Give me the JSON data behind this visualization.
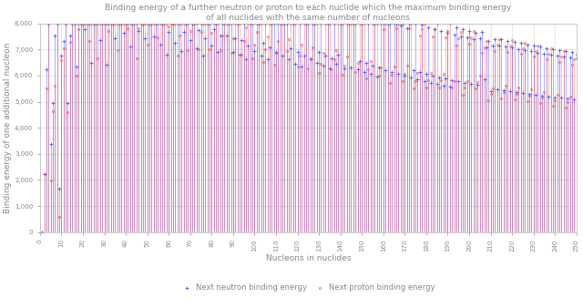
{
  "title_line1": "Binding energy of a further neutron or proton to each nuclide which the maximum binding energy",
  "title_line2": "of all nuclides with the same number of nucleons",
  "xlabel": "Nucleons in nuclides",
  "ylabel": "Binding energy of one additional nucleon",
  "legend_neutron": "Next neutron binding energy",
  "legend_proton": "Next proton binding energy",
  "neutron_color": "#4444FF",
  "proton_color": "#FF4444",
  "ylim_min": 0,
  "ylim_max": 8000,
  "xlim_min": 1,
  "xlim_max": 250,
  "background_color": "#FFFFFF",
  "grid_color": "#CCCCCC",
  "title_fontsize": 6.5,
  "axis_label_fontsize": 6.5,
  "tick_fontsize": 5,
  "legend_fontsize": 6
}
